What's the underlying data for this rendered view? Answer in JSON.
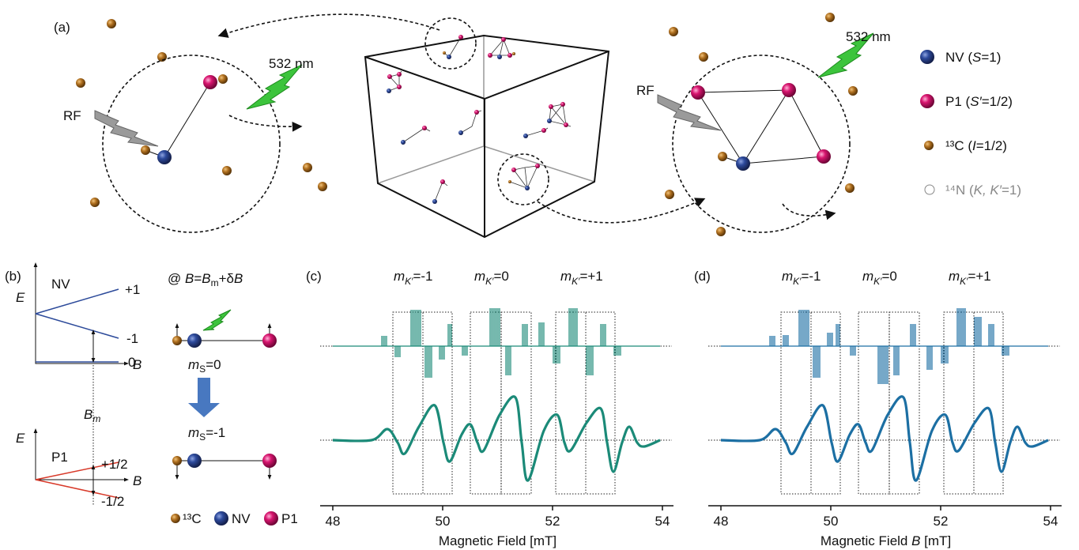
{
  "panel_a": {
    "label": "(a)",
    "wavelength_left": "532 nm",
    "wavelength_right": "532 nm",
    "rf_left": "RF",
    "rf_right": "RF",
    "legend": [
      [
        "NV (",
        "S",
        "=1)"
      ],
      [
        "P1 (",
        "S′",
        "=1/2)"
      ],
      [
        "¹³C (",
        "I",
        "=1/2)"
      ],
      [
        "¹⁴N (",
        "K, K′",
        "=1)"
      ]
    ]
  },
  "panel_b": {
    "label": "(b)",
    "nv_diagram": {
      "axis_e": "E",
      "axis_b": "B",
      "name": "NV",
      "levels": [
        "+1",
        "-1",
        "0"
      ]
    },
    "p1_diagram": {
      "axis_e": "E",
      "axis_b": "B",
      "name": "P1",
      "levels": [
        "+1/2",
        "-1/2"
      ],
      "field_marker": [
        "B",
        "m"
      ]
    },
    "condition": [
      "@ ",
      "B",
      "=",
      "B",
      "m",
      "+δ",
      "B"
    ],
    "state_0": [
      "m",
      "S",
      "=0"
    ],
    "state_1": [
      "m",
      "S",
      "=-1"
    ],
    "legend": [
      "¹³C",
      "NV",
      "P1"
    ]
  },
  "spectra": [
    {
      "label": "(c)",
      "color": "#1b8a78",
      "transitions": [
        [
          "m",
          "K′",
          "=-1"
        ],
        [
          "m",
          "K′",
          "=0"
        ],
        [
          "m",
          "K′",
          "=+1"
        ]
      ],
      "xlabel": [
        "Magnetic Field [mT]"
      ],
      "xlim": [
        48,
        54
      ],
      "xticks": [
        48,
        50,
        52,
        54
      ]
    },
    {
      "label": "(d)",
      "color": "#1c6fa3",
      "transitions": [
        [
          "m",
          "K′",
          "=-1"
        ],
        [
          "m",
          "K′",
          "=0"
        ],
        [
          "m",
          "K′",
          "=+1"
        ]
      ],
      "xlabel": [
        "Magnetic Field ",
        "B",
        " [mT]"
      ],
      "xlim": [
        48,
        54
      ],
      "xticks": [
        48,
        50,
        52,
        54
      ]
    }
  ]
}
